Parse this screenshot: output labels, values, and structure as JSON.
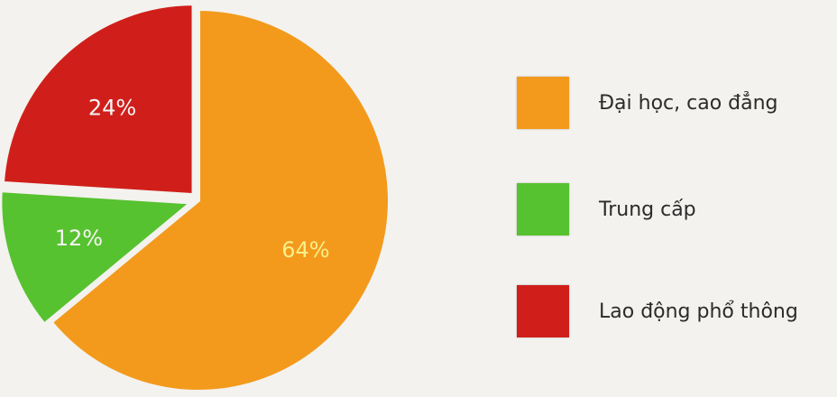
{
  "chart_data": {
    "type": "pie",
    "categories": [
      "Đại học, cao đẳng",
      "Trung cấp",
      "Lao động phổ thông"
    ],
    "values": [
      64,
      12,
      24
    ],
    "labels": [
      "64%",
      "12%",
      "24%"
    ],
    "colors": [
      "#f39a1c",
      "#57c22f",
      "#d01f1a"
    ],
    "legend_position": "right"
  },
  "legend": {
    "items": [
      {
        "label": "Đại học, cao đẳng",
        "color": "#f39a1c"
      },
      {
        "label": "Trung cấp",
        "color": "#57c22f"
      },
      {
        "label": "Lao động phổ thông",
        "color": "#d01f1a"
      }
    ]
  }
}
